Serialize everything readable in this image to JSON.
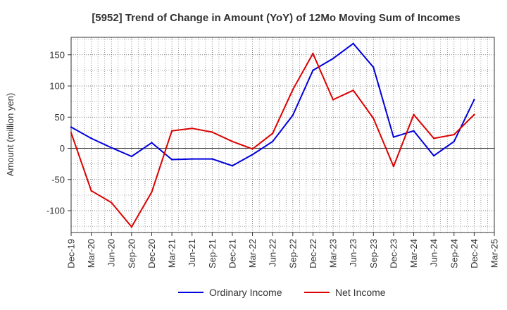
{
  "chart_data": {
    "type": "line",
    "title": "[5952]  Trend of Change in Amount (YoY) of 12Mo Moving Sum of Incomes",
    "xlabel": "",
    "ylabel": "Amount (million yen)",
    "ylim": [
      -135,
      178
    ],
    "yticks": [
      -100,
      -50,
      0,
      50,
      100,
      150
    ],
    "grid": true,
    "legend_position": "bottom-center",
    "categories": [
      "Dec-19",
      "Mar-20",
      "Jun-20",
      "Sep-20",
      "Dec-20",
      "Mar-21",
      "Jun-21",
      "Sep-21",
      "Dec-21",
      "Mar-22",
      "Jun-22",
      "Sep-22",
      "Dec-22",
      "Mar-23",
      "Jun-23",
      "Sep-23",
      "Dec-23",
      "Mar-24",
      "Jun-24",
      "Sep-24",
      "Dec-24",
      "Mar-25"
    ],
    "series": [
      {
        "name": "Ordinary Income",
        "color": "#0000dd",
        "values": [
          34,
          16,
          1,
          -13,
          9,
          -18,
          -17,
          -17,
          -28,
          -10,
          11,
          53,
          125,
          144,
          168,
          130,
          18,
          28,
          -12,
          11,
          78,
          null
        ]
      },
      {
        "name": "Net Income",
        "color": "#dd0000",
        "values": [
          25,
          -68,
          -87,
          -126,
          -70,
          28,
          32,
          26,
          11,
          -1,
          24,
          94,
          152,
          78,
          93,
          48,
          -29,
          54,
          16,
          22,
          54,
          null
        ]
      }
    ]
  }
}
